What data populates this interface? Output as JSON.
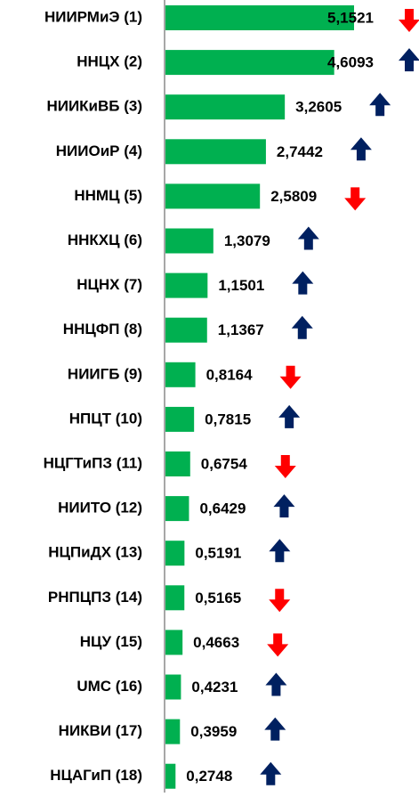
{
  "chart_data": {
    "type": "barh",
    "categories": [
      "НИИРМиЭ (1)",
      "ННЦХ (2)",
      "НИИКиВБ (3)",
      "НИИОиР (4)",
      "ННМЦ (5)",
      "ННКХЦ (6)",
      "НЦНХ (7)",
      "ННЦФП (8)",
      "НИИГБ (9)",
      "НПЦТ (10)",
      "НЦГТиПЗ (11)",
      "НИИТО (12)",
      "НЦПиДХ (13)",
      "РНПЦПЗ (14)",
      "НЦУ (15)",
      "UMC (16)",
      "НИКВИ (17)",
      "НЦАГиП (18)"
    ],
    "values": [
      5.1521,
      4.6093,
      3.2605,
      2.7442,
      2.5809,
      1.3079,
      1.1501,
      1.1367,
      0.8164,
      0.7815,
      0.6754,
      0.6429,
      0.5191,
      0.5165,
      0.4663,
      0.4231,
      0.3959,
      0.2748
    ],
    "value_labels": [
      "5,1521",
      "4,6093",
      "3,2605",
      "2,7442",
      "2,5809",
      "1,3079",
      "1,1501",
      "1,1367",
      "0,8164",
      "0,7815",
      "0,6754",
      "0,6429",
      "0,5191",
      "0,5165",
      "0,4663",
      "0,4231",
      "0,3959",
      "0,2748"
    ],
    "trends": [
      "down",
      "up",
      "up",
      "up",
      "down",
      "up",
      "up",
      "up",
      "down",
      "up",
      "down",
      "up",
      "up",
      "down",
      "down",
      "up",
      "up",
      "up"
    ],
    "color": "#00b050",
    "up_color": "#002060",
    "down_color": "#ff0000"
  }
}
